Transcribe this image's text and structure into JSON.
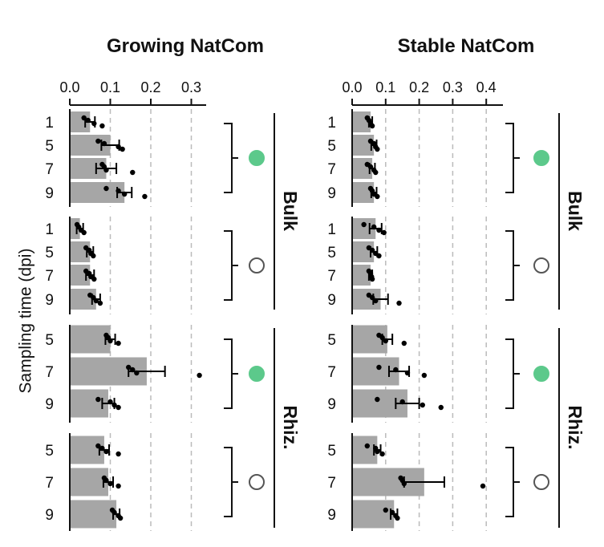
{
  "chart_data": {
    "type": "bar",
    "ylabel": "Sampling time (dpi)",
    "colors": {
      "bar": "#a6a6a6",
      "point": "#000000",
      "filled_marker": "#5cc98b",
      "open_marker": "#ffffff",
      "grid": "#bbbbbb"
    },
    "panels": [
      {
        "title": "Growing NatCom",
        "xlim": [
          0,
          0.33
        ],
        "xticks": [
          "0.0",
          "0.1",
          "0.2",
          "0.3"
        ],
        "xtick_values": [
          0,
          0.1,
          0.2,
          0.3
        ],
        "groups": [
          {
            "location": "Bulk",
            "marker": "filled",
            "categories": [
              "1",
              "5",
              "7",
              "9"
            ],
            "values": [
              0.05,
              0.1,
              0.09,
              0.135
            ],
            "err": [
              0.012,
              0.022,
              0.025,
              0.018
            ],
            "points": [
              [
                0.035,
                0.045,
                0.06,
                0.08
              ],
              [
                0.07,
                0.085,
                0.12,
                0.13
              ],
              [
                0.08,
                0.085,
                0.09,
                0.155
              ],
              [
                0.09,
                0.12,
                0.135,
                0.185
              ]
            ]
          },
          {
            "location": "Bulk",
            "marker": "open",
            "categories": [
              "1",
              "5",
              "7",
              "9"
            ],
            "values": [
              0.025,
              0.05,
              0.05,
              0.065
            ],
            "err": [
              0.008,
              0.008,
              0.01,
              0.01
            ],
            "points": [
              [
                0.018,
                0.022,
                0.028,
                0.035
              ],
              [
                0.04,
                0.048,
                0.052,
                0.058
              ],
              [
                0.04,
                0.048,
                0.052,
                0.06
              ],
              [
                0.05,
                0.058,
                0.065,
                0.075
              ]
            ]
          },
          {
            "location": "Rhiz.",
            "marker": "filled",
            "categories": [
              "5",
              "7",
              "9"
            ],
            "values": [
              0.1,
              0.19,
              0.095
            ],
            "err": [
              0.012,
              0.045,
              0.015
            ],
            "points": [
              [
                0.09,
                0.095,
                0.1,
                0.12
              ],
              [
                0.145,
                0.155,
                0.165,
                0.32
              ],
              [
                0.07,
                0.1,
                0.11,
                0.12
              ]
            ]
          },
          {
            "location": "Rhiz.",
            "marker": "open",
            "categories": [
              "5",
              "7",
              "9"
            ],
            "values": [
              0.085,
              0.095,
              0.115
            ],
            "err": [
              0.012,
              0.012,
              0.008
            ],
            "points": [
              [
                0.07,
                0.08,
                0.09,
                0.12
              ],
              [
                0.085,
                0.09,
                0.1,
                0.12
              ],
              [
                0.105,
                0.11,
                0.12,
                0.125
              ]
            ]
          }
        ]
      },
      {
        "title": "Stable NatCom",
        "xlim": [
          0,
          0.44
        ],
        "xticks": [
          "0.0",
          "0.1",
          "0.2",
          "0.3",
          "0.4"
        ],
        "xtick_values": [
          0,
          0.1,
          0.2,
          0.3,
          0.4
        ],
        "groups": [
          {
            "location": "Bulk",
            "marker": "filled",
            "categories": [
              "1",
              "5",
              "7",
              "9"
            ],
            "values": [
              0.055,
              0.065,
              0.06,
              0.065
            ],
            "err": [
              0.005,
              0.008,
              0.008,
              0.008
            ],
            "points": [
              [
                0.045,
                0.05,
                0.055,
                0.06
              ],
              [
                0.055,
                0.065,
                0.07,
                0.075
              ],
              [
                0.045,
                0.055,
                0.065,
                0.07
              ],
              [
                0.055,
                0.06,
                0.065,
                0.075
              ]
            ]
          },
          {
            "location": "Bulk",
            "marker": "open",
            "categories": [
              "1",
              "5",
              "7",
              "9"
            ],
            "values": [
              0.07,
              0.065,
              0.055,
              0.085
            ],
            "err": [
              0.018,
              0.01,
              0.005,
              0.022
            ],
            "points": [
              [
                0.035,
                0.065,
                0.08,
                0.095
              ],
              [
                0.05,
                0.06,
                0.07,
                0.08
              ],
              [
                0.05,
                0.055,
                0.058,
                0.06
              ],
              [
                0.05,
                0.06,
                0.07,
                0.14
              ]
            ]
          },
          {
            "location": "Rhiz.",
            "marker": "filled",
            "categories": [
              "5",
              "7",
              "9"
            ],
            "values": [
              0.105,
              0.14,
              0.165
            ],
            "err": [
              0.015,
              0.03,
              0.035
            ],
            "points": [
              [
                0.08,
                0.09,
                0.1,
                0.155
              ],
              [
                0.08,
                0.13,
                0.165,
                0.215
              ],
              [
                0.075,
                0.15,
                0.21,
                0.265
              ]
            ]
          },
          {
            "location": "Rhiz.",
            "marker": "open",
            "categories": [
              "5",
              "7",
              "9"
            ],
            "values": [
              0.075,
              0.215,
              0.125
            ],
            "err": [
              0.01,
              0.06,
              0.01
            ],
            "points": [
              [
                0.045,
                0.07,
                0.075,
                0.09
              ],
              [
                0.145,
                0.15,
                0.155,
                0.39
              ],
              [
                0.1,
                0.12,
                0.13,
                0.135
              ]
            ]
          }
        ]
      }
    ]
  }
}
